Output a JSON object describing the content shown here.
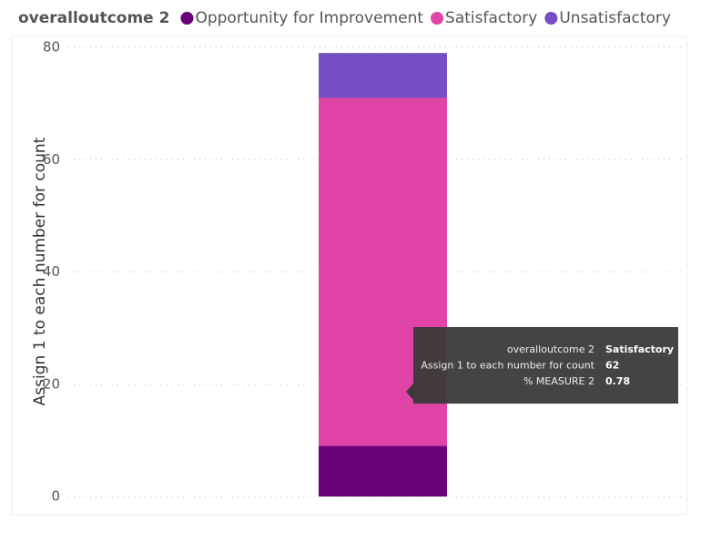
{
  "chart_data": {
    "type": "stacked_bar",
    "legend_title": "overalloutcome 2",
    "y_label": "Assign 1 to each number for count",
    "categories": [
      null
    ],
    "series": [
      {
        "name": "Opportunity for Improvement",
        "color": "#6b007b",
        "values": [
          9
        ]
      },
      {
        "name": "Satisfactory",
        "color": "#e044a7",
        "values": [
          62
        ]
      },
      {
        "name": "Unsatisfactory",
        "color": "#744ec2",
        "values": [
          8
        ]
      }
    ],
    "ylim": [
      0,
      80
    ],
    "yticks": [
      0,
      20,
      40,
      60,
      80
    ],
    "grid": true,
    "tooltip": {
      "rows": [
        {
          "label": "overalloutcome 2",
          "value": "Satisfactory"
        },
        {
          "label": "Assign 1 to each number for count",
          "value": "62"
        },
        {
          "label": "% MEASURE 2",
          "value": "0.78"
        }
      ]
    }
  }
}
